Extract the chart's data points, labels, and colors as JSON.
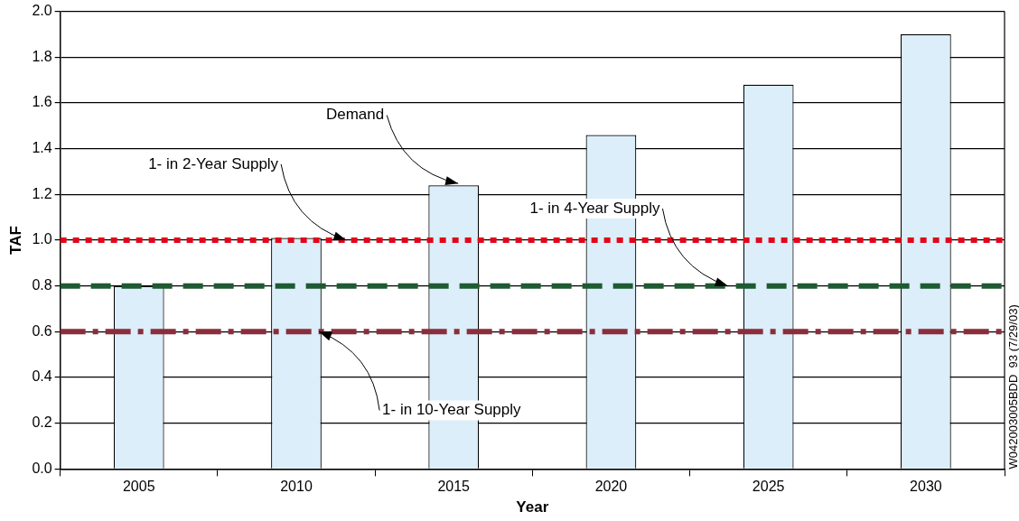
{
  "chart_data": {
    "type": "bar",
    "xlabel": "Year",
    "ylabel": "TAF",
    "categories": [
      "2005",
      "2010",
      "2015",
      "2020",
      "2025",
      "2030"
    ],
    "values": [
      0.8,
      1.01,
      1.24,
      1.46,
      1.68,
      1.9
    ],
    "color": "#dbeef9",
    "ylim": [
      0,
      2
    ],
    "yticks": [
      {
        "value": 0,
        "label": "0.0"
      },
      0.2,
      0.4,
      0.6,
      0.8,
      {
        "value": 1,
        "label": "1.0"
      },
      1.2,
      1.4,
      1.6,
      1.8,
      {
        "value": 2,
        "label": "2.0"
      }
    ],
    "grid": "y",
    "legend": false,
    "ref_lines": [
      {
        "axis": "y",
        "value": 1,
        "label": "1- in 2-Year Supply",
        "color": "#e3061b",
        "line_style": "dotted"
      },
      {
        "axis": "y",
        "value": 0.8,
        "label": "1- in 4-Year Supply",
        "color": "#1e5a32",
        "line_style": "dashed"
      },
      {
        "axis": "y",
        "value": 0.6,
        "label": "1- in 10-Year Supply",
        "color": "#8a2e3c",
        "line_style": "dashdot"
      }
    ],
    "annotations": [
      {
        "text": "Demand",
        "x": "2015",
        "y": 1.24
      },
      "W042003005BDD_93 (7/29/03)"
    ]
  }
}
